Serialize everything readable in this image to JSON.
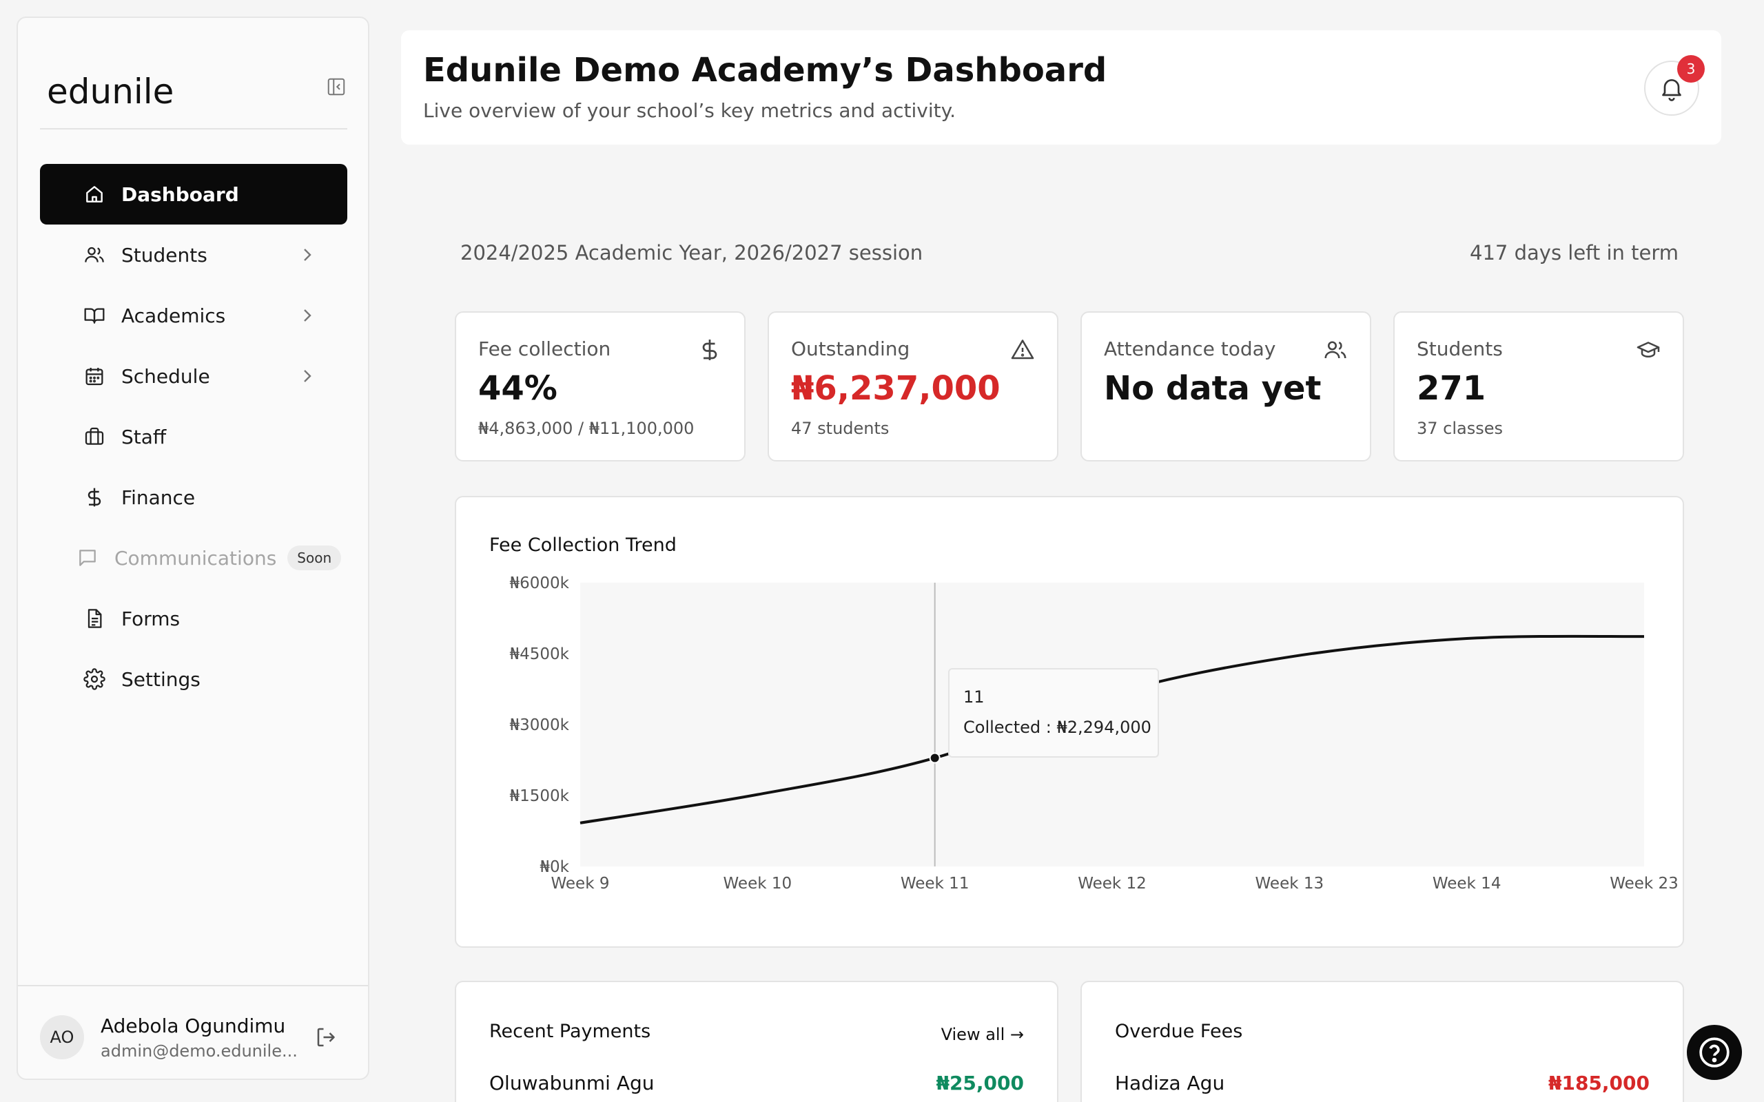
{
  "sidebar": {
    "logo": "edunile",
    "collapse_icon": "sidebar-collapse-icon",
    "items": [
      {
        "label": "Dashboard",
        "icon": "home-icon",
        "active": true,
        "has_children": false
      },
      {
        "label": "Students",
        "icon": "users-icon",
        "has_children": true
      },
      {
        "label": "Academics",
        "icon": "book-icon",
        "has_children": true
      },
      {
        "label": "Schedule",
        "icon": "calendar-icon",
        "has_children": true
      },
      {
        "label": "Staff",
        "icon": "briefcase-icon",
        "has_children": false
      },
      {
        "label": "Finance",
        "icon": "dollar-icon",
        "has_children": false
      },
      {
        "label": "Communications",
        "icon": "message-icon",
        "disabled": true,
        "badge": "Soon"
      },
      {
        "label": "Forms",
        "icon": "document-icon",
        "has_children": false
      },
      {
        "label": "Settings",
        "icon": "gear-icon",
        "has_children": false
      }
    ],
    "user": {
      "initials": "AO",
      "name": "Adebola Ogundimu",
      "email": "admin@demo.edunile..."
    }
  },
  "header": {
    "title": "Edunile Demo Academy’s Dashboard",
    "subtitle": "Live overview of your school’s key metrics and activity.",
    "notification_count": "3"
  },
  "term": {
    "session": "2024/2025 Academic Year, 2026/2027 session",
    "days_left": "417 days left in term"
  },
  "stats": [
    {
      "label": "Fee collection",
      "value": "44%",
      "sub": "₦4,863,000 / ₦11,100,000",
      "icon": "dollar-icon"
    },
    {
      "label": "Outstanding",
      "value": "₦6,237,000",
      "sub": "47 students",
      "icon": "warning-icon"
    },
    {
      "label": "Attendance today",
      "value": "No data yet",
      "sub": "",
      "icon": "users-icon"
    },
    {
      "label": "Students",
      "value": "271",
      "sub": "37 classes",
      "icon": "graduation-cap-icon"
    }
  ],
  "chart_data": {
    "type": "line",
    "title": "Fee Collection Trend",
    "categories": [
      "Week 9",
      "Week 10",
      "Week 11",
      "Week 12",
      "Week 13",
      "Week 14",
      "Week 23"
    ],
    "series": [
      {
        "values": [
          920,
          1520,
          2294,
          3650,
          4430,
          4820,
          4863
        ]
      }
    ],
    "ytick_labels": [
      "₦0k",
      "₦1500k",
      "₦3000k",
      "₦4500k",
      "₦6000k"
    ],
    "yticks": [
      0,
      1500,
      3000,
      4500,
      6000
    ],
    "ylim": [
      0,
      6000
    ],
    "tooltip": {
      "label": "11",
      "value": "Collected : ₦2,294,000",
      "index": 2
    },
    "line_color": "#111111",
    "fill_color": "#f7f7f7"
  },
  "recent_payments": {
    "title": "Recent Payments",
    "link": "View all →",
    "rows": [
      {
        "name": "Oluwabunmi Agu",
        "amount": "₦25,000"
      }
    ]
  },
  "overdue_fees": {
    "title": "Overdue Fees",
    "rows": [
      {
        "name": "Hadiza Agu",
        "amount": "₦185,000"
      }
    ]
  }
}
